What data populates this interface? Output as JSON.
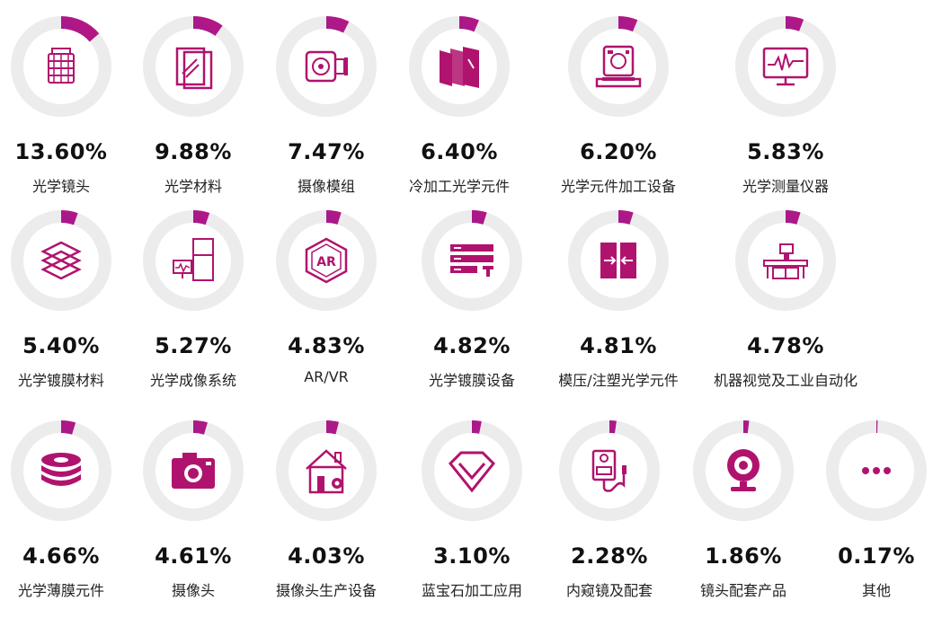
{
  "colors": {
    "accent": "#b0136e",
    "gradient_start": "#5b2bb5",
    "gradient_end": "#c2137c",
    "track": "#ececec"
  },
  "chart_data": {
    "type": "donut-grid",
    "items": [
      {
        "label": "光学镜头",
        "percent_text": "13.60%",
        "value": 13.6,
        "icon": "camera-lens-icon"
      },
      {
        "label": "光学材料",
        "percent_text": "9.88%",
        "value": 9.88,
        "icon": "glass-sheets-icon"
      },
      {
        "label": "摄像模组",
        "percent_text": "7.47%",
        "value": 7.47,
        "icon": "camera-module-icon"
      },
      {
        "label": "冷加工光学元件",
        "percent_text": "6.40%",
        "value": 6.4,
        "icon": "glass-panels-icon"
      },
      {
        "label": "光学元件加工设备",
        "percent_text": "6.20%",
        "value": 6.2,
        "icon": "processing-machine-icon"
      },
      {
        "label": "光学测量仪器",
        "percent_text": "5.83%",
        "value": 5.83,
        "icon": "monitor-waveform-icon"
      },
      {
        "label": "光学镀膜材料",
        "percent_text": "5.40%",
        "value": 5.4,
        "icon": "coating-layers-icon"
      },
      {
        "label": "光学成像系统",
        "percent_text": "5.27%",
        "value": 5.27,
        "icon": "imaging-system-icon"
      },
      {
        "label": "AR/VR",
        "percent_text": "4.83%",
        "value": 4.83,
        "icon": "ar-hexagon-icon"
      },
      {
        "label": "光学镀膜设备",
        "percent_text": "4.82%",
        "value": 4.82,
        "icon": "server-rack-icon"
      },
      {
        "label": "模压/注塑光学元件",
        "percent_text": "4.81%",
        "value": 4.81,
        "icon": "mold-press-icon"
      },
      {
        "label": "机器视觉及工业自动化",
        "percent_text": "4.78%",
        "value": 4.78,
        "icon": "conveyor-icon"
      },
      {
        "label": "光学薄膜元件",
        "percent_text": "4.66%",
        "value": 4.66,
        "icon": "film-discs-icon"
      },
      {
        "label": "摄像头",
        "percent_text": "4.61%",
        "value": 4.61,
        "icon": "camera-icon"
      },
      {
        "label": "摄像头生产设备",
        "percent_text": "4.03%",
        "value": 4.03,
        "icon": "house-gear-icon"
      },
      {
        "label": "蓝宝石加工应用",
        "percent_text": "3.10%",
        "value": 3.1,
        "icon": "gem-icon"
      },
      {
        "label": "内窥镜及配套",
        "percent_text": "2.28%",
        "value": 2.28,
        "icon": "endoscope-icon"
      },
      {
        "label": "镜头配套产品",
        "percent_text": "1.86%",
        "value": 1.86,
        "icon": "webcam-icon"
      },
      {
        "label": "其他",
        "percent_text": "0.17%",
        "value": 0.17,
        "icon": "more-dots-icon"
      }
    ]
  }
}
